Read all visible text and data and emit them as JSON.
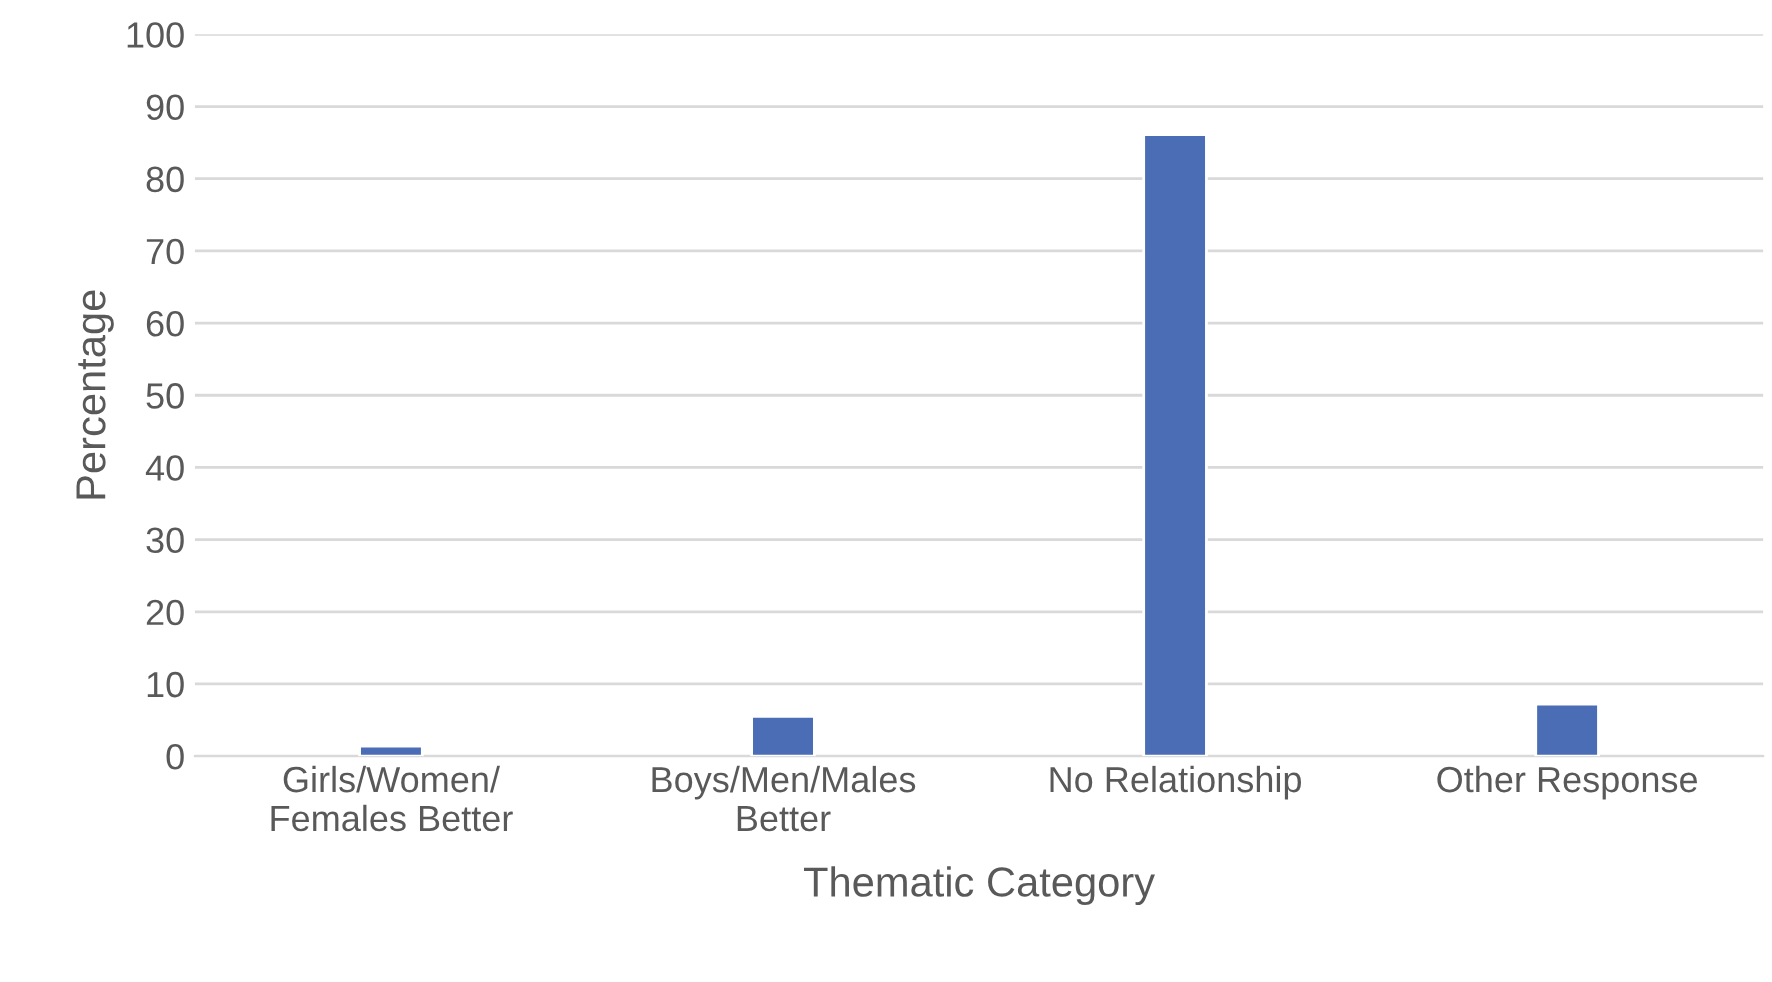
{
  "chart_data": {
    "type": "bar",
    "xlabel": "Thematic Category",
    "ylabel": "Percentage",
    "categories": [
      "Girls/Women/\nFemales Better",
      "Boys/Men/Males\nBetter",
      "No Relationship",
      "Other Response"
    ],
    "values": [
      1.4,
      5.5,
      86.1,
      7.2
    ],
    "color": "#4a6db5",
    "ylim": [
      0,
      100
    ],
    "yticks": [
      0,
      10,
      20,
      30,
      40,
      50,
      60,
      70,
      80,
      90,
      100
    ],
    "grid": "y"
  }
}
